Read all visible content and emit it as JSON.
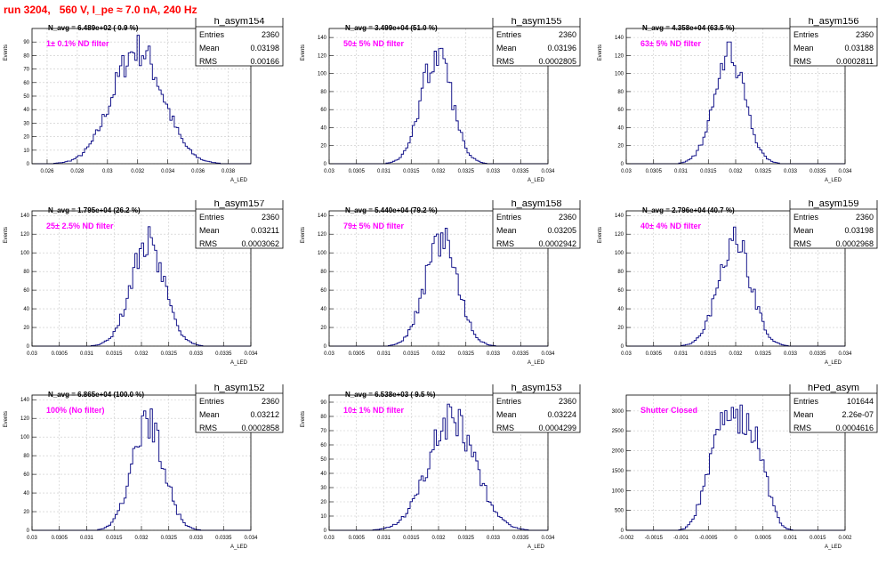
{
  "page": {
    "title": "run 3204,   560 V, I_pe ≈ 7.0 nA, 240 Hz"
  },
  "style": {
    "histogram_color": "#000080",
    "label_color": "#ff00ff",
    "title_color": "#ff0000",
    "grid_color": "#c8c8c8"
  },
  "chart_data": [
    {
      "type": "histogram",
      "name": "h_asym154",
      "stats": {
        "entries": "2360",
        "mean": "0.03198",
        "rms": "0.00166"
      },
      "navg": "N_avg = 6.489e+02 ( 0.9 %)",
      "filter": "1± 0.1% ND filter",
      "xlabel": "A_LED",
      "ylabel": "Events",
      "xlim": [
        0.025,
        0.0395
      ],
      "ylim": [
        0,
        100
      ],
      "xticks": [
        0.026,
        0.028,
        0.03,
        0.032,
        0.034,
        0.036,
        0.038
      ],
      "xtick_labels": [
        "0.026",
        "0.028",
        "0.03",
        "0.032",
        "0.034",
        "0.036",
        "0.038"
      ],
      "yticks": [
        0,
        10,
        20,
        30,
        40,
        50,
        60,
        70,
        80,
        90
      ],
      "peak": {
        "center": 0.032,
        "sigma": 0.00166,
        "height": 85,
        "max": 95
      }
    },
    {
      "type": "histogram",
      "name": "h_asym155",
      "stats": {
        "entries": "2360",
        "mean": "0.03196",
        "rms": "0.0002805"
      },
      "navg": "N_avg = 3.499e+04 (51.0 %)",
      "filter": "50± 5% ND filter",
      "xlabel": "A_LED",
      "ylabel": "Events",
      "xlim": [
        0.03,
        0.034
      ],
      "ylim": [
        0,
        150
      ],
      "xticks": [
        0.03,
        0.0305,
        0.031,
        0.0315,
        0.032,
        0.0325,
        0.033,
        0.0335,
        0.034
      ],
      "xtick_labels": [
        "0.03",
        "0.0305",
        "0.031",
        "0.0315",
        "0.032",
        "0.0325",
        "0.033",
        "0.0335",
        "0.034"
      ],
      "yticks": [
        0,
        20,
        40,
        60,
        80,
        100,
        120,
        140
      ],
      "peak": {
        "center": 0.03196,
        "sigma": 0.0002805,
        "height": 120,
        "max": 138
      }
    },
    {
      "type": "histogram",
      "name": "h_asym156",
      "stats": {
        "entries": "2360",
        "mean": "0.03188",
        "rms": "0.0002811"
      },
      "navg": "N_avg = 4.358e+04 (63.5 %)",
      "filter": "63± 5% ND filter",
      "xlabel": "A_LED",
      "ylabel": "Events",
      "xlim": [
        0.03,
        0.034
      ],
      "ylim": [
        0,
        150
      ],
      "xticks": [
        0.03,
        0.0305,
        0.031,
        0.0315,
        0.032,
        0.0325,
        0.033,
        0.0335,
        0.034
      ],
      "xtick_labels": [
        "0.03",
        "0.0305",
        "0.031",
        "0.0315",
        "0.032",
        "0.0325",
        "0.033",
        "0.0335",
        "0.034"
      ],
      "yticks": [
        0,
        20,
        40,
        60,
        80,
        100,
        120,
        140
      ],
      "peak": {
        "center": 0.03188,
        "sigma": 0.0002811,
        "height": 120,
        "max": 135
      }
    },
    {
      "type": "histogram",
      "name": "h_asym157",
      "stats": {
        "entries": "2360",
        "mean": "0.03211",
        "rms": "0.0003062"
      },
      "navg": "N_avg = 1.795e+04 (26.2 %)",
      "filter": "25± 2.5% ND filter",
      "xlabel": "A_LED",
      "ylabel": "Events",
      "xlim": [
        0.03,
        0.034
      ],
      "ylim": [
        0,
        145
      ],
      "xticks": [
        0.03,
        0.0305,
        0.031,
        0.0315,
        0.032,
        0.0325,
        0.033,
        0.0335,
        0.034
      ],
      "xtick_labels": [
        "0.03",
        "0.0305",
        "0.031",
        "0.0315",
        "0.032",
        "0.0325",
        "0.033",
        "0.0335",
        "0.034"
      ],
      "yticks": [
        0,
        20,
        40,
        60,
        80,
        100,
        120,
        140
      ],
      "peak": {
        "center": 0.03211,
        "sigma": 0.0003062,
        "height": 112,
        "max": 130
      }
    },
    {
      "type": "histogram",
      "name": "h_asym158",
      "stats": {
        "entries": "2360",
        "mean": "0.03205",
        "rms": "0.0002942"
      },
      "navg": "N_avg = 5.440e+04 (79.2 %)",
      "filter": "79± 5% ND filter",
      "xlabel": "A_LED",
      "ylabel": "Events",
      "xlim": [
        0.03,
        0.034
      ],
      "ylim": [
        0,
        145
      ],
      "xticks": [
        0.03,
        0.0305,
        0.031,
        0.0315,
        0.032,
        0.0325,
        0.033,
        0.0335,
        0.034
      ],
      "xtick_labels": [
        "0.03",
        "0.0305",
        "0.031",
        "0.0315",
        "0.032",
        "0.0325",
        "0.033",
        "0.0335",
        "0.034"
      ],
      "yticks": [
        0,
        20,
        40,
        60,
        80,
        100,
        120,
        140
      ],
      "peak": {
        "center": 0.03205,
        "sigma": 0.0002942,
        "height": 115,
        "max": 135
      }
    },
    {
      "type": "histogram",
      "name": "h_asym159",
      "stats": {
        "entries": "2360",
        "mean": "0.03198",
        "rms": "0.0002968"
      },
      "navg": "N_avg = 2.796e+04 (40.7 %)",
      "filter": "40± 4% ND filter",
      "xlabel": "A_LED",
      "ylabel": "Events",
      "xlim": [
        0.03,
        0.034
      ],
      "ylim": [
        0,
        145
      ],
      "xticks": [
        0.03,
        0.0305,
        0.031,
        0.0315,
        0.032,
        0.0325,
        0.033,
        0.0335,
        0.034
      ],
      "xtick_labels": [
        "0.03",
        "0.0305",
        "0.031",
        "0.0315",
        "0.032",
        "0.0325",
        "0.033",
        "0.0335",
        "0.034"
      ],
      "yticks": [
        0,
        20,
        40,
        60,
        80,
        100,
        120,
        140
      ],
      "peak": {
        "center": 0.03198,
        "sigma": 0.0002968,
        "height": 113,
        "max": 130
      }
    },
    {
      "type": "histogram",
      "name": "h_asym152",
      "stats": {
        "entries": "2360",
        "mean": "0.03212",
        "rms": "0.0002858"
      },
      "navg": "N_avg = 6.865e+04 (100.0 %)",
      "filter": "100% (No filter)",
      "xlabel": "A_LED",
      "ylabel": "Events",
      "xlim": [
        0.03,
        0.034
      ],
      "ylim": [
        0,
        145
      ],
      "xticks": [
        0.03,
        0.0305,
        0.031,
        0.0315,
        0.032,
        0.0325,
        0.033,
        0.0335,
        0.034
      ],
      "xtick_labels": [
        "0.03",
        "0.0305",
        "0.031",
        "0.0315",
        "0.032",
        "0.0325",
        "0.033",
        "0.0335",
        "0.034"
      ],
      "yticks": [
        0,
        20,
        40,
        60,
        80,
        100,
        120,
        140
      ],
      "peak": {
        "center": 0.03212,
        "sigma": 0.0002858,
        "height": 118,
        "max": 135
      }
    },
    {
      "type": "histogram",
      "name": "h_asym153",
      "stats": {
        "entries": "2360",
        "mean": "0.03224",
        "rms": "0.0004299"
      },
      "navg": "N_avg = 6.538e+03 ( 9.5 %)",
      "filter": "10± 1% ND filter",
      "xlabel": "A_LED",
      "ylabel": "Events",
      "xlim": [
        0.03,
        0.034
      ],
      "ylim": [
        0,
        95
      ],
      "xticks": [
        0.03,
        0.0305,
        0.031,
        0.0315,
        0.032,
        0.0325,
        0.033,
        0.0335,
        0.034
      ],
      "xtick_labels": [
        "0.03",
        "0.0305",
        "0.031",
        "0.0315",
        "0.032",
        "0.0325",
        "0.033",
        "0.0335",
        "0.034"
      ],
      "yticks": [
        0,
        10,
        20,
        30,
        40,
        50,
        60,
        70,
        80,
        90
      ],
      "peak": {
        "center": 0.03224,
        "sigma": 0.0004299,
        "height": 78,
        "max": 90
      }
    },
    {
      "type": "histogram",
      "name": "hPed_asym",
      "stats": {
        "entries": "101644",
        "mean": "2.26e-07",
        "rms": "0.0004616"
      },
      "navg": "",
      "filter": "Shutter Closed",
      "xlabel": "A_LED",
      "ylabel": "",
      "xlim": [
        -0.002,
        0.002
      ],
      "ylim": [
        0,
        3400
      ],
      "xticks": [
        -0.002,
        -0.0015,
        -0.001,
        -0.0005,
        0,
        0.0005,
        0.001,
        0.0015,
        0.002
      ],
      "xtick_labels": [
        "-0.002",
        "-0.0015",
        "-0.001",
        "-0.0005",
        "0",
        "0.0005",
        "0.001",
        "0.0015",
        "0.002"
      ],
      "yticks": [
        0,
        500,
        1000,
        1500,
        2000,
        2500,
        3000
      ],
      "peak": {
        "center": 0.0,
        "sigma": 0.0004616,
        "height": 2900,
        "max": 3150,
        "flat": true
      }
    }
  ]
}
